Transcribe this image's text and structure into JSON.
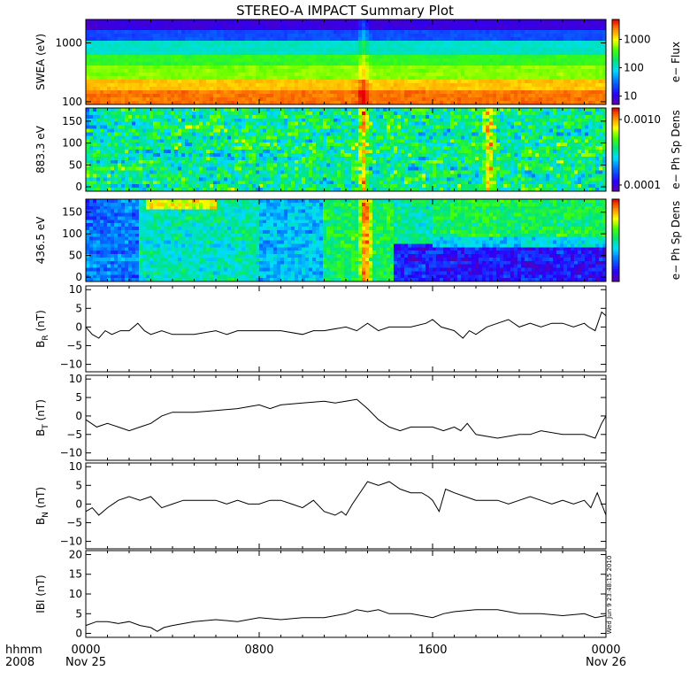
{
  "title": "STEREO-A IMPACT Summary Plot",
  "stamp": "Wed Jun  9 23:48:15 2010",
  "time_axis": {
    "label_row1": "hhmm",
    "label_row2": "2008",
    "ticks": [
      {
        "t": 0,
        "label": "0000",
        "sub": "Nov 25"
      },
      {
        "t": 8,
        "label": "0800",
        "sub": ""
      },
      {
        "t": 16,
        "label": "1600",
        "sub": ""
      },
      {
        "t": 24,
        "label": "0000",
        "sub": "Nov 26"
      }
    ],
    "range_hours": [
      0,
      24
    ]
  },
  "chart_data": [
    {
      "type": "heatmap",
      "ylabel": "SWEA (eV)",
      "y_scale": "log",
      "ylim": [
        90,
        2500
      ],
      "yticks": [
        {
          "v": 100,
          "label": "100"
        },
        {
          "v": 1000,
          "label": "1000"
        }
      ],
      "colorbar": {
        "label": "e− Flux",
        "scale": "log",
        "range": [
          5,
          5000
        ],
        "ticks": [
          {
            "v": 10,
            "label": "10"
          },
          {
            "v": 100,
            "label": "100"
          },
          {
            "v": 1000,
            "label": "1000"
          }
        ]
      },
      "pattern": "energy_spectrum",
      "features": [
        {
          "t": 12.8,
          "boost": 0.12
        }
      ]
    },
    {
      "type": "heatmap",
      "ylabel": "883.3 eV",
      "ylim": [
        -10,
        180
      ],
      "yticks": [
        {
          "v": 0,
          "label": "0"
        },
        {
          "v": 50,
          "label": "50"
        },
        {
          "v": 100,
          "label": "100"
        },
        {
          "v": 150,
          "label": "150"
        }
      ],
      "colorbar": {
        "label": "e− Ph Sp Dens",
        "scale": "log",
        "range": [
          8e-05,
          0.0015
        ],
        "ticks": [
          {
            "v": 0.0001,
            "label": "0.0001"
          },
          {
            "v": 0.001,
            "label": "0.0010"
          }
        ]
      },
      "pattern": "pitch_angle_mid",
      "features": [
        {
          "t": 12.8,
          "boost": 0.3
        },
        {
          "t": 18.6,
          "boost": 0.3
        }
      ]
    },
    {
      "type": "heatmap",
      "ylabel": "436.5 eV",
      "ylim": [
        -10,
        180
      ],
      "yticks": [
        {
          "v": 0,
          "label": "0"
        },
        {
          "v": 50,
          "label": "50"
        },
        {
          "v": 100,
          "label": "100"
        },
        {
          "v": 150,
          "label": "150"
        }
      ],
      "colorbar": {
        "label": "e− Ph Sp Dens",
        "scale": "linear",
        "range": [
          0,
          1
        ],
        "ticks": []
      },
      "pattern": "pitch_angle_low",
      "features": [
        {
          "t": 12.9,
          "boost": 0.4
        }
      ]
    },
    {
      "type": "line",
      "ylabel_main": "B",
      "ylabel_sub": "R",
      "ylabel_unit": " (nT)",
      "ylim": [
        -12,
        11
      ],
      "yticks": [
        {
          "v": -10,
          "label": "−10"
        },
        {
          "v": -5,
          "label": "−5"
        },
        {
          "v": 0,
          "label": "0"
        },
        {
          "v": 5,
          "label": "5"
        },
        {
          "v": 10,
          "label": "10"
        }
      ],
      "x_hours": [
        0,
        0.3,
        0.6,
        0.9,
        1.2,
        1.6,
        2.0,
        2.4,
        2.7,
        3.0,
        3.5,
        4.0,
        5.0,
        6.0,
        6.5,
        7.0,
        8.0,
        9.0,
        10.0,
        10.5,
        11.0,
        12.0,
        12.5,
        13.0,
        13.5,
        14.0,
        15.0,
        15.7,
        16.0,
        16.4,
        17.0,
        17.4,
        17.7,
        18.0,
        18.5,
        19.0,
        19.5,
        20.0,
        20.5,
        21.0,
        21.5,
        22.0,
        22.5,
        23.0,
        23.2,
        23.5,
        23.8,
        24.0
      ],
      "y_nT": [
        0,
        -2,
        -3,
        -1,
        -2,
        -1,
        -1,
        1,
        -1,
        -2,
        -1,
        -2,
        -2,
        -1,
        -2,
        -1,
        -1,
        -1,
        -2,
        -1,
        -1,
        0,
        -1,
        1,
        -1,
        0,
        0,
        1,
        2,
        0,
        -1,
        -3,
        -1,
        -2,
        0,
        1,
        2,
        0,
        1,
        0,
        1,
        1,
        0,
        1,
        0,
        -1,
        4,
        3
      ]
    },
    {
      "type": "line",
      "ylabel_main": "B",
      "ylabel_sub": "T",
      "ylabel_unit": " (nT)",
      "ylim": [
        -12,
        11
      ],
      "yticks": [
        {
          "v": -10,
          "label": "−10"
        },
        {
          "v": -5,
          "label": "−5"
        },
        {
          "v": 0,
          "label": "0"
        },
        {
          "v": 5,
          "label": "5"
        },
        {
          "v": 10,
          "label": "10"
        }
      ],
      "x_hours": [
        0,
        0.5,
        1.0,
        1.5,
        2.0,
        2.5,
        3.0,
        3.5,
        4.0,
        5.0,
        6.0,
        7.0,
        7.5,
        8.0,
        8.5,
        9.0,
        10.0,
        11.0,
        11.5,
        12.0,
        12.5,
        13.0,
        13.5,
        14.0,
        14.5,
        15.0,
        16.0,
        16.5,
        17.0,
        17.3,
        17.6,
        18.0,
        19.0,
        20.0,
        20.5,
        21.0,
        22.0,
        22.5,
        23.0,
        23.5,
        23.8,
        24.0
      ],
      "y_nT": [
        -1,
        -3,
        -2,
        -3,
        -4,
        -3,
        -2,
        0,
        1,
        1,
        1.5,
        2,
        2.5,
        3,
        2,
        3,
        3.5,
        4,
        3.5,
        4,
        4.5,
        2,
        -1,
        -3,
        -4,
        -3,
        -3,
        -4,
        -3,
        -4,
        -2,
        -5,
        -6,
        -5,
        -5,
        -4,
        -5,
        -5,
        -5,
        -6,
        -2,
        0
      ]
    },
    {
      "type": "line",
      "ylabel_main": "B",
      "ylabel_sub": "N",
      "ylabel_unit": " (nT)",
      "ylim": [
        -12,
        11
      ],
      "yticks": [
        {
          "v": -10,
          "label": "−10"
        },
        {
          "v": -5,
          "label": "−5"
        },
        {
          "v": 0,
          "label": "0"
        },
        {
          "v": 5,
          "label": "5"
        },
        {
          "v": 10,
          "label": "10"
        }
      ],
      "x_hours": [
        0,
        0.3,
        0.6,
        1.0,
        1.5,
        2.0,
        2.5,
        3.0,
        3.5,
        4.0,
        4.5,
        5.0,
        6.0,
        6.5,
        7.0,
        7.5,
        8.0,
        8.5,
        9.0,
        9.5,
        10.0,
        10.5,
        11.0,
        11.5,
        11.8,
        12.0,
        12.3,
        13.0,
        13.5,
        14.0,
        14.5,
        15.0,
        15.5,
        15.8,
        16.0,
        16.3,
        16.6,
        17.0,
        17.5,
        18.0,
        18.5,
        19.0,
        19.5,
        20.0,
        20.5,
        21.0,
        21.5,
        22.0,
        22.5,
        23.0,
        23.3,
        23.6,
        24.0
      ],
      "y_nT": [
        -2,
        -1,
        -3,
        -1,
        1,
        2,
        1,
        2,
        -1,
        0,
        1,
        1,
        1,
        0,
        1,
        0,
        0,
        1,
        1,
        0,
        -1,
        1,
        -2,
        -3,
        -2,
        -3,
        0,
        6,
        5,
        6,
        4,
        3,
        3,
        2,
        1,
        -2,
        4,
        3,
        2,
        1,
        1,
        1,
        0,
        1,
        2,
        1,
        0,
        1,
        0,
        1,
        -1,
        3,
        -3
      ]
    },
    {
      "type": "line",
      "ylabel_main": "IBI",
      "ylabel_sub": "",
      "ylabel_unit": " (nT)",
      "ylim": [
        -1,
        21
      ],
      "yticks": [
        {
          "v": 0,
          "label": "0"
        },
        {
          "v": 5,
          "label": "5"
        },
        {
          "v": 10,
          "label": "10"
        },
        {
          "v": 15,
          "label": "15"
        },
        {
          "v": 20,
          "label": "20"
        }
      ],
      "x_hours": [
        0,
        0.5,
        1.0,
        1.5,
        2.0,
        2.5,
        3.0,
        3.3,
        3.6,
        4.0,
        5.0,
        6.0,
        7.0,
        8.0,
        9.0,
        10.0,
        11.0,
        11.5,
        12.0,
        12.5,
        13.0,
        13.5,
        14.0,
        15.0,
        16.0,
        16.5,
        17.0,
        18.0,
        19.0,
        20.0,
        21.0,
        22.0,
        23.0,
        23.5,
        24.0
      ],
      "y_nT": [
        2,
        3,
        3,
        2.5,
        3,
        2,
        1.5,
        0.5,
        1.5,
        2,
        3,
        3.5,
        3,
        4,
        3.5,
        4,
        4,
        4.5,
        5,
        6,
        5.5,
        6,
        5,
        5,
        4,
        5,
        5.5,
        6,
        6,
        5,
        5,
        4.5,
        5,
        4,
        4.5
      ]
    }
  ]
}
